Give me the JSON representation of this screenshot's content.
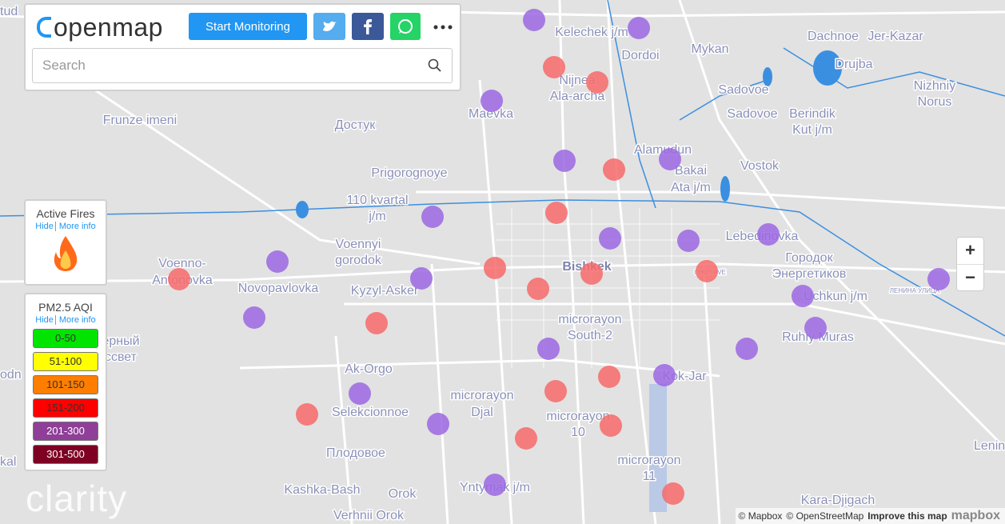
{
  "header": {
    "logo": "openmap",
    "button": "Start Monitoring",
    "search_placeholder": "Search"
  },
  "fires_panel": {
    "title": "Active Fires",
    "hide": "Hide",
    "more_info": "More info"
  },
  "aqi_legend": {
    "title": "PM2.5 AQI",
    "hide": "Hide",
    "more_info": "More info",
    "ranges": [
      "0-50",
      "51-100",
      "101-150",
      "151-200",
      "201-300",
      "301-500"
    ]
  },
  "map_labels": [
    "tud",
    "Kelechek j/m",
    "Dordoi",
    "Mykan",
    "Dachnoe",
    "Jer-Kazar",
    "Drujba",
    "Nizhniy",
    "Norus",
    "Nijnea",
    "Ala-archa",
    "Maevka",
    "Sadovoe",
    "Sadovoe",
    "Berindik",
    "Kut j/m",
    "Frunze imeni",
    "Достук",
    "Alamudun",
    "Bakai",
    "Ata j/m",
    "Vostok",
    "Prigorognoye",
    "110 kvartal",
    "j/m",
    "Lebedinovka",
    "Voennyi",
    "gorodok",
    "Voenno-",
    "Antonovka",
    "Bishkek",
    "Городок",
    "Энергетиков",
    "Novopavlovka",
    "Kyzyl-Asker",
    "Uchkun j/m",
    "microrayon",
    "South-2",
    "Ruhiy Muras",
    "ерный",
    "ссвет",
    "odn",
    "Ak-Orgo",
    "Kok-Jar",
    "microrayon",
    "Djal",
    "Selekcionnoe",
    "microrayon",
    "10",
    "Lenin",
    "Плодовое",
    "kal",
    "microrayon",
    "11",
    "Kashka-Bash",
    "Yntymak j/m",
    "Orok",
    "Kara-Djigach",
    "Verhnii Orok",
    "ЛЕНИНА УЛИЦА",
    "CHUY AVE"
  ],
  "zoom": {
    "in": "+",
    "out": "−"
  },
  "attribution": {
    "mapbox": "© Mapbox",
    "osm": "© OpenStreetMap",
    "improve": "Improve this map",
    "brand": "mapbox"
  },
  "watermark": "clarity"
}
